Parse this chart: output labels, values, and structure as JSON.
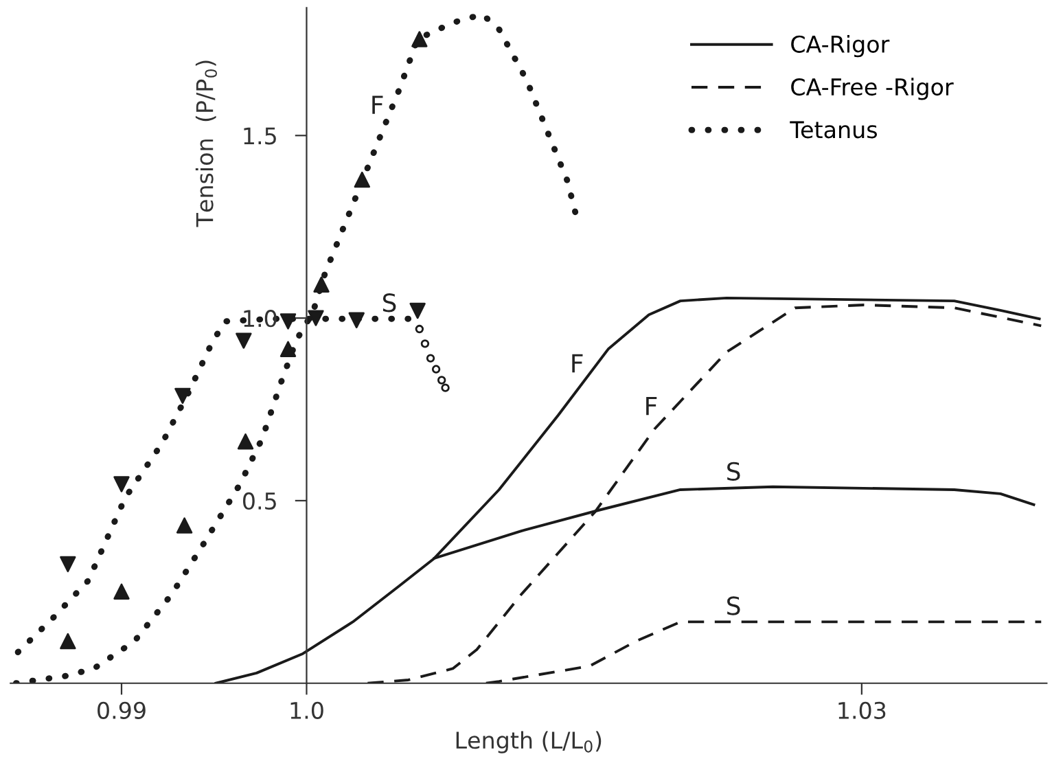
{
  "chart_data": {
    "type": "line",
    "xlabel": "Length (L/L$_{0}$)",
    "ylabel": "Tension  (P/P$_{0}$)",
    "xlim": [
      0.984,
      1.04
    ],
    "ylim": [
      0,
      1.85
    ],
    "xticks": [
      0.99,
      {
        "value": 1.0,
        "label": "1.0"
      },
      1.03
    ],
    "yticks": [
      0.5,
      {
        "value": 1.0,
        "label": "1.0"
      },
      1.5
    ],
    "legend": "top right",
    "grid": false,
    "series": [
      {
        "name": "CA-Rigor",
        "color": "#1a1a1a",
        "line_style": "solid",
        "marker": "none",
        "x": [
          0.9951,
          0.9973,
          0.9998,
          1.0025,
          1.005,
          1.0069,
          1.0104,
          1.0136,
          1.0163,
          1.0185,
          1.0202,
          1.0227,
          1.035,
          1.0375,
          1.0396
        ],
        "values": [
          0.0,
          0.028,
          0.081,
          0.168,
          0.266,
          0.342,
          0.53,
          0.734,
          0.915,
          1.009,
          1.047,
          1.055,
          1.047,
          1.021,
          0.998
        ]
      },
      {
        "color": "#1a1a1a",
        "line_style": "solid",
        "marker": "none",
        "x": [
          1.0069,
          1.0116,
          1.0158,
          1.0202,
          1.0252,
          1.035,
          1.0375,
          1.0393
        ],
        "values": [
          0.342,
          0.417,
          0.474,
          0.53,
          0.538,
          0.53,
          0.519,
          0.489
        ]
      },
      {
        "name": "CA-Free -Rigor",
        "color": "#1a1a1a",
        "line_style": "dashed",
        "marker": "none",
        "x": [
          1.0033,
          1.0055,
          1.0079,
          1.0092,
          1.0116,
          1.0156,
          1.0188,
          1.0227,
          1.0264,
          1.0301,
          1.035,
          1.0375,
          1.0397
        ],
        "values": [
          0.0,
          0.009,
          0.04,
          0.092,
          0.243,
          0.47,
          0.696,
          0.907,
          1.028,
          1.036,
          1.028,
          1.002,
          0.979
        ]
      },
      {
        "color": "#1a1a1a",
        "line_style": "dashed",
        "marker": "none",
        "x": [
          1.0097,
          1.0104,
          1.0153,
          1.0178,
          1.0202,
          1.0252,
          1.0397
        ],
        "values": [
          0.0,
          0.005,
          0.047,
          0.115,
          0.168,
          0.168,
          0.168
        ]
      },
      {
        "name": "Tetanus",
        "color": "#1a1a1a",
        "line_style": "dotted",
        "marker": "none",
        "x": [
          0.9843,
          0.987,
          0.9885,
          0.9907,
          0.9927,
          0.9944,
          0.9964,
          0.9976,
          0.9986,
          0.99933,
          0.99978,
          1.0003,
          1.001,
          1.0025,
          1.004,
          1.005,
          1.006,
          1.0079,
          1.0095,
          1.0104,
          1.0119,
          1.0131,
          1.0141,
          1.0146
        ],
        "values": [
          0.0,
          0.02,
          0.04,
          0.115,
          0.243,
          0.379,
          0.545,
          0.67,
          0.821,
          0.923,
          0.972,
          1.009,
          1.123,
          1.311,
          1.5,
          1.625,
          1.764,
          1.809,
          1.832,
          1.791,
          1.651,
          1.5,
          1.375,
          1.274
        ]
      },
      {
        "color": "#1a1a1a",
        "line_style": "dotted",
        "marker": "none",
        "x": [
          0.9844,
          0.9863,
          0.9882,
          0.9902,
          0.9922,
          0.9936,
          0.9949,
          0.9956,
          0.9981,
          1.0005,
          1.003,
          1.0058
        ],
        "values": [
          0.085,
          0.179,
          0.281,
          0.508,
          0.658,
          0.794,
          0.934,
          0.991,
          0.998,
          0.998,
          0.998,
          0.998
        ]
      },
      {
        "type": "scatter",
        "color": "#1a1a1a",
        "marker": "circle",
        "x": [
          1.0061,
          1.0064,
          1.0067,
          1.007,
          1.0073,
          1.0075
        ],
        "values": [
          0.97,
          0.93,
          0.89,
          0.86,
          0.83,
          0.809
        ]
      },
      {
        "type": "scatter",
        "color": "#1a1a1a",
        "marker": "triangle_down",
        "x": [
          0.9871,
          0.99,
          0.9933,
          0.9966,
          0.999,
          1.0005,
          1.0027,
          1.006
        ],
        "values": [
          0.326,
          0.545,
          0.787,
          0.938,
          0.991,
          1.0,
          0.994,
          1.02
        ]
      },
      {
        "type": "scatter",
        "color": "#1a1a1a",
        "marker": "triangle",
        "x": [
          0.9871,
          0.99,
          0.9934,
          0.9967,
          0.999,
          1.0008,
          1.003,
          1.0061
        ],
        "values": [
          0.115,
          0.251,
          0.432,
          0.662,
          0.915,
          1.092,
          1.379,
          1.764
        ]
      }
    ],
    "annotations": [
      {
        "text": "F",
        "x": 1.0043,
        "y": 1.54
      },
      {
        "text": "S",
        "x": 1.005,
        "y": 0.998
      },
      {
        "text": "F",
        "x": 1.0151,
        "y": 0.832
      },
      {
        "text": "F",
        "x": 1.0191,
        "y": 0.715
      },
      {
        "text": "S",
        "x": 1.0236,
        "y": 0.536
      },
      {
        "text": "S",
        "x": 1.0236,
        "y": 0.168
      }
    ]
  }
}
